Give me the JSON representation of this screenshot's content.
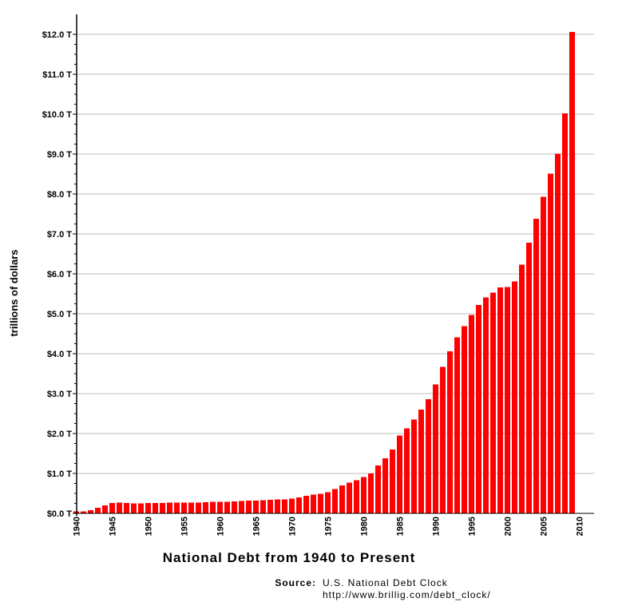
{
  "chart_data": {
    "type": "bar",
    "title": "National Debt from 1940 to Present",
    "ylabel": "trillions of dollars",
    "xlabel": "",
    "ylim": [
      0,
      12.0
    ],
    "y_ticks": [
      "$0.0 T",
      "$1.0 T",
      "$2.0 T",
      "$3.0 T",
      "$4.0 T",
      "$5.0 T",
      "$6.0 T",
      "$7.0 T",
      "$8.0 T",
      "$9.0 T",
      "$10.0 T",
      "$11.0 T",
      "$12.0 T"
    ],
    "x_ticks": [
      "1940",
      "1945",
      "1950",
      "1955",
      "1960",
      "1965",
      "1970",
      "1975",
      "1980",
      "1985",
      "1990",
      "1995",
      "2000",
      "2005",
      "2010"
    ],
    "grid": true,
    "bar_color": "#ff0000",
    "categories": [
      1940,
      1941,
      1942,
      1943,
      1944,
      1945,
      1946,
      1947,
      1948,
      1949,
      1950,
      1951,
      1952,
      1953,
      1954,
      1955,
      1956,
      1957,
      1958,
      1959,
      1960,
      1961,
      1962,
      1963,
      1964,
      1965,
      1966,
      1967,
      1968,
      1969,
      1970,
      1971,
      1972,
      1973,
      1974,
      1975,
      1976,
      1977,
      1978,
      1979,
      1980,
      1981,
      1982,
      1983,
      1984,
      1985,
      1986,
      1987,
      1988,
      1989,
      1990,
      1991,
      1992,
      1993,
      1994,
      1995,
      1996,
      1997,
      1998,
      1999,
      2000,
      2001,
      2002,
      2003,
      2004,
      2005,
      2006,
      2007,
      2008,
      2009
    ],
    "values": [
      0.05,
      0.05,
      0.08,
      0.14,
      0.2,
      0.26,
      0.27,
      0.26,
      0.25,
      0.25,
      0.26,
      0.26,
      0.26,
      0.27,
      0.27,
      0.27,
      0.27,
      0.27,
      0.28,
      0.29,
      0.29,
      0.29,
      0.3,
      0.31,
      0.32,
      0.32,
      0.33,
      0.34,
      0.35,
      0.35,
      0.37,
      0.4,
      0.44,
      0.47,
      0.49,
      0.53,
      0.61,
      0.7,
      0.77,
      0.83,
      0.91,
      1.0,
      1.2,
      1.38,
      1.6,
      1.95,
      2.13,
      2.35,
      2.6,
      2.86,
      3.23,
      3.67,
      4.06,
      4.41,
      4.69,
      4.97,
      5.22,
      5.41,
      5.53,
      5.66,
      5.67,
      5.81,
      6.23,
      6.78,
      7.38,
      7.93,
      8.51,
      9.01,
      10.02,
      12.06
    ]
  },
  "source": {
    "label": "Source:",
    "name": "U.S. National Debt Clock",
    "url": "http://www.brillig.com/debt_clock/"
  }
}
